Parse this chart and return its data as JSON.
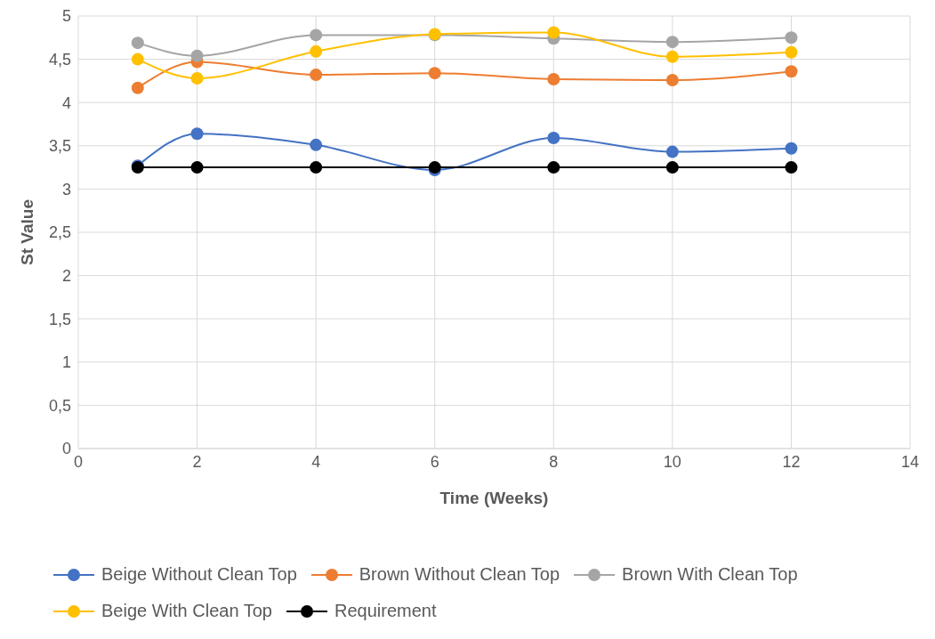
{
  "chart_data": {
    "type": "line",
    "xlabel": "Time (Weeks)",
    "ylabel": "St Value",
    "x": [
      1,
      2,
      4,
      6,
      8,
      10,
      12
    ],
    "series": [
      {
        "name": "Beige Without Clean Top",
        "color": "#4472c4",
        "values": [
          3.27,
          3.64,
          3.51,
          3.22,
          3.59,
          3.43,
          3.47
        ]
      },
      {
        "name": "Brown Without Clean Top",
        "color": "#ed7d31",
        "values": [
          4.17,
          4.47,
          4.32,
          4.34,
          4.27,
          4.26,
          4.36
        ]
      },
      {
        "name": "Brown With Clean Top",
        "color": "#a5a5a5",
        "values": [
          4.69,
          4.54,
          4.78,
          4.78,
          4.74,
          4.7,
          4.75
        ]
      },
      {
        "name": "Beige With Clean Top",
        "color": "#ffc000",
        "values": [
          4.5,
          4.28,
          4.59,
          4.79,
          4.81,
          4.53,
          4.58
        ]
      },
      {
        "name": "Requirement",
        "color": "#000000",
        "values": [
          3.25,
          3.25,
          3.25,
          3.25,
          3.25,
          3.25,
          3.25
        ]
      }
    ],
    "xlim": [
      0,
      14
    ],
    "xticks": [
      0,
      2,
      4,
      6,
      8,
      10,
      12,
      14
    ],
    "ylim": [
      0,
      5
    ],
    "yticks": [
      0,
      {
        "value": 0.5,
        "label": "0,5"
      },
      1,
      {
        "value": 1.5,
        "label": "1,5"
      },
      2,
      {
        "value": 2.5,
        "label": "2,5"
      },
      3,
      {
        "value": 3.5,
        "label": "3,5"
      },
      4,
      {
        "value": 4.5,
        "label": "4,5"
      },
      5
    ],
    "grid": true,
    "legend": "bottom",
    "marker": "circle",
    "line_style": "solid"
  }
}
